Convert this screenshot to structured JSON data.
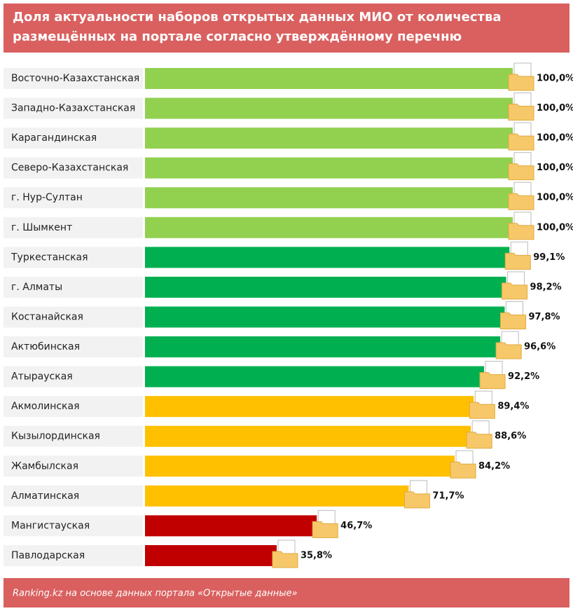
{
  "chart_data": {
    "type": "hbar",
    "title": "Доля актуальности наборов открытых данных МИО от количества размещённых на портале согласно утверждённому перечню",
    "source": "Ranking.kz на основе данных портала «Открытые данные»",
    "categories": [
      "Восточно-Казахстанская",
      "Западно-Казахстанская",
      "Карагандинская",
      "Северо-Казахстанская",
      "г. Нур-Султан",
      "г. Шымкент",
      "Туркестанская",
      "г. Алматы",
      "Костанайская",
      "Актюбинская",
      "Атырауская",
      "Акмолинская",
      "Кызылординская",
      "Жамбылская",
      "Алматинская",
      "Мангистауская",
      "Павлодарская"
    ],
    "values": [
      100.0,
      100.0,
      100.0,
      100.0,
      100.0,
      100.0,
      99.1,
      98.2,
      97.8,
      96.6,
      92.2,
      89.4,
      88.6,
      84.2,
      71.7,
      46.7,
      35.8
    ],
    "value_labels": [
      "100,0%",
      "100,0%",
      "100,0%",
      "100,0%",
      "100,0%",
      "100,0%",
      "99,1%",
      "98,2%",
      "97,8%",
      "96,6%",
      "92,2%",
      "89,4%",
      "88,6%",
      "84,2%",
      "71,7%",
      "46,7%",
      "35,8%"
    ],
    "colors": [
      "#92d050",
      "#92d050",
      "#92d050",
      "#92d050",
      "#92d050",
      "#92d050",
      "#00b050",
      "#00b050",
      "#00b050",
      "#00b050",
      "#00b050",
      "#ffc000",
      "#ffc000",
      "#ffc000",
      "#ffc000",
      "#c00000",
      "#c00000"
    ],
    "xlim": [
      0,
      100
    ]
  }
}
